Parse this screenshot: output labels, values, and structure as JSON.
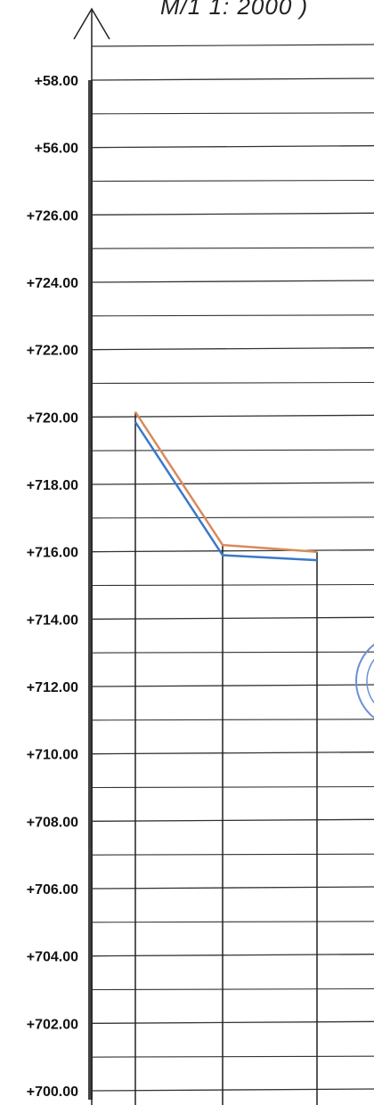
{
  "header": {
    "scale_note": "М/1    1: 2000 )"
  },
  "axis": {
    "labels": [
      "+58.00",
      "+56.00",
      "+726.00",
      "+724.00",
      "+722.00",
      "+720.00",
      "+718.00",
      "+716.00",
      "+714.00",
      "+712.00",
      "+710.00",
      "+708.00",
      "+706.00",
      "+704.00",
      "+702.00",
      "+700.00"
    ]
  },
  "chart_data": {
    "type": "line",
    "title": "",
    "xlabel": "",
    "ylabel": "",
    "ylim": [
      700,
      726
    ],
    "note": "Profile elevations; the top two axis labels (+58.00, +56.00) are printed as shown",
    "x_stations": [
      1,
      2,
      3
    ],
    "series": [
      {
        "color": "#d98a5a",
        "values": [
          720.15,
          716.2,
          716.0
        ]
      },
      {
        "color": "#3a78c8",
        "values": [
          719.85,
          715.9,
          715.75
        ]
      }
    ]
  },
  "colors": {
    "grid": "#333333",
    "axis_bar": "#444444",
    "stamp": "#6b8fd6"
  }
}
